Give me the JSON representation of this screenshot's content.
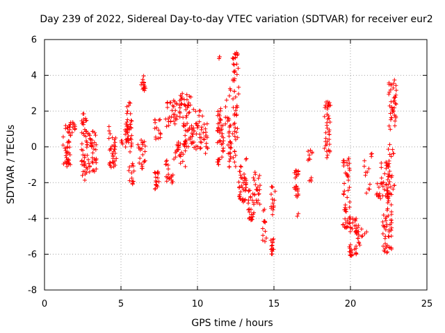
{
  "chart_data": {
    "type": "scatter",
    "title": "Day 239 of 2022, Sidereal Day-to-day VTEC variation (SDTVAR) for receiver eur2",
    "xlabel": "GPS time / hours",
    "ylabel": "SDTVAR / TECUs",
    "xlim": [
      0,
      25
    ],
    "ylim": [
      -8,
      6
    ],
    "x_ticks": [
      0,
      5,
      10,
      15,
      20,
      25
    ],
    "y_ticks": [
      -8,
      -6,
      -4,
      -2,
      0,
      2,
      4,
      6
    ],
    "grid": true,
    "legend": "none",
    "marker": "+",
    "color": "#ff0000",
    "clusters": [
      {
        "x0": 1.2,
        "x1": 1.7,
        "y0": -1.1,
        "y1": 1.2,
        "n": 40
      },
      {
        "x0": 1.6,
        "x1": 2.0,
        "y0": 0.6,
        "y1": 1.4,
        "n": 12
      },
      {
        "x0": 2.4,
        "x1": 2.8,
        "y0": -1.9,
        "y1": 1.9,
        "n": 40
      },
      {
        "x0": 2.7,
        "x1": 3.4,
        "y0": -1.4,
        "y1": 0.9,
        "n": 45
      },
      {
        "x0": 4.2,
        "x1": 4.7,
        "y0": -1.2,
        "y1": 1.2,
        "n": 35
      },
      {
        "x0": 5.0,
        "x1": 5.5,
        "y0": 0.1,
        "y1": 1.0,
        "n": 14
      },
      {
        "x0": 5.3,
        "x1": 5.7,
        "y0": -0.3,
        "y1": 2.5,
        "n": 35
      },
      {
        "x0": 5.5,
        "x1": 5.9,
        "y0": -2.1,
        "y1": -0.6,
        "n": 14
      },
      {
        "x0": 6.1,
        "x1": 6.6,
        "y0": -1.6,
        "y1": 0.4,
        "n": 22
      },
      {
        "x0": 6.3,
        "x1": 6.6,
        "y0": 3.1,
        "y1": 4.0,
        "n": 14
      },
      {
        "x0": 7.2,
        "x1": 7.5,
        "y0": -2.6,
        "y1": -1.2,
        "n": 18
      },
      {
        "x0": 7.2,
        "x1": 7.6,
        "y0": 0.3,
        "y1": 1.6,
        "n": 14
      },
      {
        "x0": 7.9,
        "x1": 8.4,
        "y0": -2.1,
        "y1": -0.7,
        "n": 18
      },
      {
        "x0": 7.9,
        "x1": 8.7,
        "y0": 1.0,
        "y1": 2.6,
        "n": 30
      },
      {
        "x0": 8.4,
        "x1": 9.3,
        "y0": -1.1,
        "y1": 0.3,
        "n": 25
      },
      {
        "x0": 8.8,
        "x1": 9.6,
        "y0": 1.6,
        "y1": 3.0,
        "n": 35
      },
      {
        "x0": 9.0,
        "x1": 9.6,
        "y0": 0.0,
        "y1": 1.4,
        "n": 22
      },
      {
        "x0": 9.6,
        "x1": 10.4,
        "y0": -0.2,
        "y1": 2.1,
        "n": 40
      },
      {
        "x0": 10.4,
        "x1": 10.7,
        "y0": -0.4,
        "y1": 1.3,
        "n": 14
      },
      {
        "x0": 11.3,
        "x1": 11.7,
        "y0": -1.2,
        "y1": 2.3,
        "n": 45
      },
      {
        "x0": 11.4,
        "x1": 11.5,
        "y0": 4.4,
        "y1": 5.3,
        "n": 3
      },
      {
        "x0": 11.8,
        "x1": 12.2,
        "y0": 1.1,
        "y1": 3.3,
        "n": 14
      },
      {
        "x0": 12.0,
        "x1": 12.5,
        "y0": -1.2,
        "y1": 0.9,
        "n": 28
      },
      {
        "x0": 12.3,
        "x1": 12.7,
        "y0": 0.5,
        "y1": 5.3,
        "n": 45
      },
      {
        "x0": 12.7,
        "x1": 13.2,
        "y0": -3.1,
        "y1": -0.6,
        "n": 40
      },
      {
        "x0": 13.3,
        "x1": 13.7,
        "y0": -4.1,
        "y1": -2.4,
        "n": 25
      },
      {
        "x0": 13.6,
        "x1": 14.1,
        "y0": -3.3,
        "y1": -1.4,
        "n": 22
      },
      {
        "x0": 14.2,
        "x1": 14.5,
        "y0": -5.3,
        "y1": -3.4,
        "n": 14
      },
      {
        "x0": 14.8,
        "x1": 15.0,
        "y0": -6.0,
        "y1": -5.1,
        "n": 14
      },
      {
        "x0": 14.8,
        "x1": 15.1,
        "y0": -3.8,
        "y1": -1.9,
        "n": 14
      },
      {
        "x0": 16.3,
        "x1": 16.6,
        "y0": -3.0,
        "y1": -1.2,
        "n": 25
      },
      {
        "x0": 16.5,
        "x1": 16.6,
        "y0": -3.9,
        "y1": -3.6,
        "n": 2
      },
      {
        "x0": 17.2,
        "x1": 17.5,
        "y0": -0.9,
        "y1": -0.1,
        "n": 8
      },
      {
        "x0": 17.3,
        "x1": 17.5,
        "y0": -2.0,
        "y1": -1.6,
        "n": 4
      },
      {
        "x0": 18.3,
        "x1": 18.7,
        "y0": -1.0,
        "y1": 2.6,
        "n": 40
      },
      {
        "x0": 19.5,
        "x1": 20.0,
        "y0": -4.6,
        "y1": -0.6,
        "n": 45
      },
      {
        "x0": 19.9,
        "x1": 20.4,
        "y0": -6.1,
        "y1": -3.9,
        "n": 40
      },
      {
        "x0": 20.4,
        "x1": 20.8,
        "y0": -5.6,
        "y1": -4.2,
        "n": 14
      },
      {
        "x0": 20.9,
        "x1": 21.1,
        "y0": -4.9,
        "y1": -4.7,
        "n": 2
      },
      {
        "x0": 20.9,
        "x1": 21.3,
        "y0": -2.6,
        "y1": -0.6,
        "n": 10
      },
      {
        "x0": 21.3,
        "x1": 21.5,
        "y0": -0.6,
        "y1": -0.3,
        "n": 3
      },
      {
        "x0": 21.7,
        "x1": 22.0,
        "y0": -2.9,
        "y1": -2.0,
        "n": 10
      },
      {
        "x0": 22.0,
        "x1": 22.5,
        "y0": -3.0,
        "y1": -0.7,
        "n": 30
      },
      {
        "x0": 22.1,
        "x1": 22.7,
        "y0": -6.0,
        "y1": -3.2,
        "n": 45
      },
      {
        "x0": 22.4,
        "x1": 22.9,
        "y0": -3.6,
        "y1": 0.3,
        "n": 30
      },
      {
        "x0": 22.5,
        "x1": 23.0,
        "y0": 0.9,
        "y1": 3.8,
        "n": 40
      }
    ]
  }
}
